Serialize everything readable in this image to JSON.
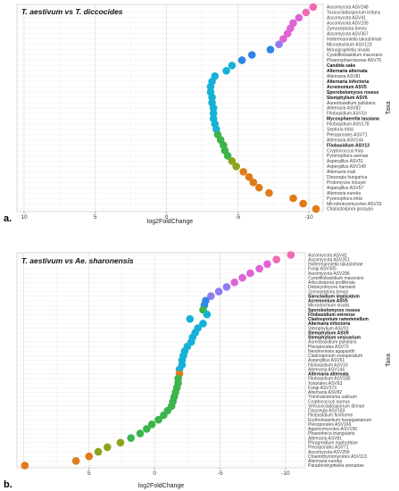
{
  "chart_data": [
    {
      "type": "scatter",
      "panel_label": "a.",
      "title": "T. aestivum vs T. diccocides",
      "xlabel": "log2FoldChange",
      "ylabel": "Taxa",
      "x_reversed": true,
      "xlim": [
        10.5,
        -11
      ],
      "xticks": [
        10,
        5,
        0,
        -5,
        -10
      ],
      "grid": true,
      "legend": "none",
      "palette": {
        "orange": "#e07b1a",
        "olive": "#8aa51d",
        "green": "#3cb44b",
        "cyan": "#16b1d6",
        "blue": "#2f86e8",
        "violet": "#8e7cf2",
        "magenta": "#e063d6",
        "pink": "#f06bb2"
      },
      "taxa": [
        "Ascomycota ASV248",
        "Toxicocladosporium irritans",
        "Ascomycota ASV41",
        "Ascomycota ASV235",
        "Zymoseptoria brevis",
        "Ascomycota ASV367",
        "Holtermanniella takashimae",
        "Microdochium ASV123",
        "Monographella nivalis",
        "Cystofilobasidium macerans",
        "Phaeosphaeriaceae ASV76",
        "Candida sake",
        "Alternaria alternata",
        "Alternaria ASV81",
        "Alternaria infectoria",
        "Acremonium ASV5",
        "Sporobolomyces roseus",
        "Stemphylium ASV6",
        "Aureobasidium pullulans",
        "Alternaria ASV82",
        "Filobasidium ASV16",
        "Mycosphaerella tassiana",
        "Filobasidium ASV178",
        "Septoria tritici",
        "Pleosporales ASV71",
        "Alternaria ASV144",
        "Filobasidium ASV13",
        "Cryptococcus frias",
        "Pyrenophora avenae",
        "Aspergillus ASV51",
        "Aspergillus ASV149",
        "Alternaria mali",
        "Dioszegia hungarica",
        "Protomyces inouyei",
        "Aspergillus ASV57",
        "Alternaria eureka",
        "Pyrenophora tritici",
        "Microbotryomycetes ASV33",
        "Chalastospora gossypii"
      ],
      "bold": [
        false,
        false,
        false,
        false,
        false,
        false,
        false,
        false,
        false,
        false,
        false,
        true,
        true,
        false,
        true,
        true,
        true,
        true,
        false,
        false,
        false,
        true,
        false,
        false,
        false,
        false,
        true,
        false,
        false,
        false,
        false,
        false,
        false,
        false,
        false,
        false,
        false,
        false,
        false
      ],
      "x": [
        -10.3,
        -9.8,
        -9.3,
        -8.9,
        -8.7,
        -8.5,
        -8.2,
        -7.9,
        -7.3,
        -6.0,
        -5.3,
        -4.6,
        -4.2,
        -3.4,
        -3.2,
        -3.1,
        -3.1,
        -3.2,
        -3.2,
        -3.3,
        -3.3,
        -3.3,
        -3.4,
        -3.5,
        -3.6,
        -3.8,
        -4.0,
        -4.1,
        -4.3,
        -4.6,
        -4.9,
        -5.4,
        -5.8,
        -6.1,
        -6.5,
        -7.2,
        -8.9,
        -9.6,
        -10.5
      ],
      "colors": [
        "pink",
        "pink",
        "magenta",
        "magenta",
        "magenta",
        "magenta",
        "magenta",
        "violet",
        "blue",
        "blue",
        "blue",
        "cyan",
        "cyan",
        "cyan",
        "cyan",
        "cyan",
        "cyan",
        "cyan",
        "cyan",
        "cyan",
        "cyan",
        "cyan",
        "cyan",
        "cyan",
        "green",
        "green",
        "green",
        "green",
        "green",
        "olive",
        "olive",
        "orange",
        "orange",
        "orange",
        "orange",
        "orange",
        "orange",
        "orange",
        "orange"
      ]
    },
    {
      "type": "scatter",
      "panel_label": "b.",
      "title": "T. aestivum vs Ae. sharonensis",
      "xlabel": "log2FoldChange",
      "ylabel": "Taxa",
      "x_reversed": true,
      "xlim": [
        10.5,
        -11.5
      ],
      "xticks": [
        5,
        0,
        -5,
        -10
      ],
      "grid": true,
      "legend": "none",
      "taxa": [
        "Ascomycota ASV41",
        "Ascomycota ASV251",
        "Holtermanniella takashimae",
        "Fungi ASV305",
        "Ascomycota ASV296",
        "Cystofilobasidium macerans",
        "Articulospora proliferata",
        "Debaryomyces hansenii",
        "Zymoseptoria brevis",
        "Sarocladium implicatum",
        "Acremonium ASV5",
        "Microdochium nivalis",
        "Sporobolomyces roseus",
        "Filobasidium oeirense",
        "Cladosporium ramotenellum",
        "Alternaria infectoria",
        "Stemphylium ASV91",
        "Stemphylium ASV6",
        "Stemphylium vesicarium",
        "Aureobasidium pullulans",
        "Pleosporales ASV73",
        "Neodevriesia agapanthi",
        "Cladosporium exasperatum",
        "Aspergillus ASV51",
        "Filobasidium ASV16",
        "Alternaria ASV144",
        "Alternaria alternata",
        "Filobasidium ASV185",
        "Xylariales ASV63",
        "Fungi ASV373",
        "Alternaria ASV82",
        "Trimmatostroma salinum",
        "Cryptococcus aureus",
        "Verrucocladosporium dirinae",
        "Dioszegia ASV183",
        "Filobasidium floriforme",
        "Erythrobasidium hasegawianum",
        "Pleosporales ASV166",
        "Agaricomycotes ASV156",
        "Phaeothecа triangularis",
        "Alternaria ASV81",
        "Phragmidium euphorbiae",
        "Pleosporales ASV71",
        "Ascomycota ASV256",
        "Chaetothyriomycetes ASV113",
        "Alternaria eureka",
        "Paradendryphiella arenariae"
      ],
      "bold": [
        false,
        false,
        false,
        false,
        false,
        false,
        false,
        false,
        false,
        true,
        true,
        false,
        true,
        true,
        true,
        true,
        false,
        true,
        true,
        false,
        false,
        false,
        false,
        false,
        false,
        false,
        true,
        false,
        false,
        false,
        false,
        false,
        false,
        false,
        false,
        false,
        false,
        false,
        false,
        false,
        false,
        false,
        false,
        false,
        false,
        false,
        false
      ],
      "x": [
        -10.4,
        -9.3,
        -8.6,
        -8.0,
        -7.3,
        -6.7,
        -6.1,
        -5.5,
        -4.9,
        -4.3,
        -3.9,
        -3.8,
        -3.7,
        -4.0,
        -2.7,
        -3.7,
        -3.3,
        -3.1,
        -2.9,
        -2.8,
        -2.5,
        -2.3,
        -2.2,
        -2.1,
        -2.1,
        -1.9,
        -1.9,
        -1.8,
        -1.8,
        -1.7,
        -1.6,
        -1.5,
        -1.4,
        -1.3,
        -1.0,
        -0.7,
        -0.3,
        0.2,
        0.6,
        1.1,
        1.8,
        2.6,
        3.6,
        4.3,
        5.0,
        6.0,
        9.9
      ],
      "colors": [
        "pink",
        "pink",
        "magenta",
        "magenta",
        "magenta",
        "magenta",
        "magenta",
        "violet",
        "violet",
        "violet",
        "blue",
        "blue",
        "green",
        "cyan",
        "cyan",
        "cyan",
        "cyan",
        "cyan",
        "cyan",
        "cyan",
        "cyan",
        "cyan",
        "cyan",
        "cyan",
        "cyan",
        "cyan",
        "orange",
        "green",
        "green",
        "green",
        "green",
        "green",
        "green",
        "green",
        "green",
        "green",
        "green",
        "green",
        "green",
        "green",
        "green",
        "olive",
        "olive",
        "olive",
        "orange",
        "orange",
        "orange"
      ]
    }
  ]
}
